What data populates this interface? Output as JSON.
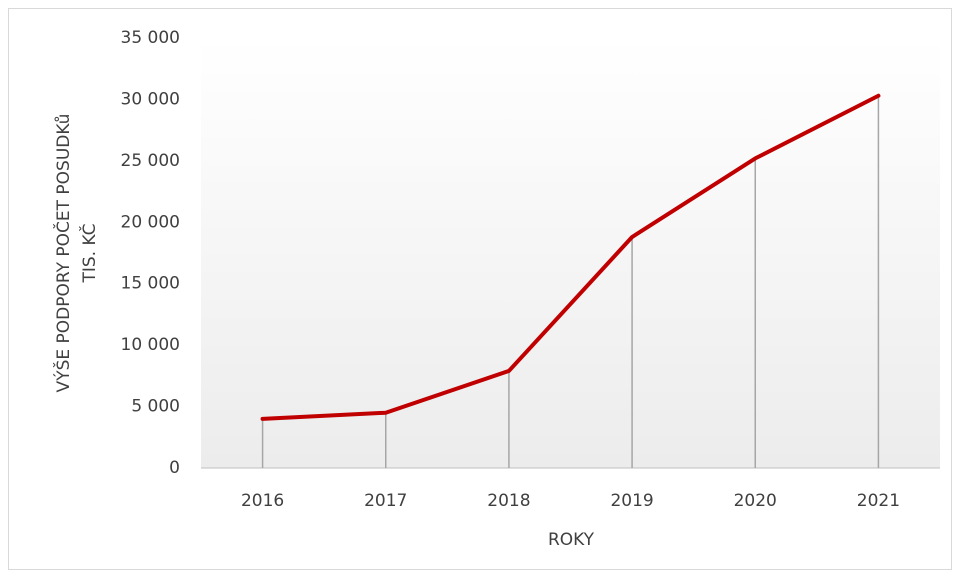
{
  "chart_data": {
    "type": "line",
    "categories": [
      "2016",
      "2017",
      "2018",
      "2019",
      "2020",
      "2021"
    ],
    "values": [
      4000,
      4500,
      7900,
      18800,
      25200,
      30300
    ],
    "color": "#c00000",
    "drop_lines": true,
    "x_label": "ROKY",
    "y_label": [
      "VÝŠE PODPORY POČET POSUDKů",
      "TIS. KČ"
    ],
    "ylim": [
      0,
      35000
    ],
    "yticks": [
      {
        "value": 0,
        "label": "0"
      },
      {
        "value": 5000,
        "label": "5 000"
      },
      {
        "value": 10000,
        "label": "10 000"
      },
      {
        "value": 15000,
        "label": "15 000"
      },
      {
        "value": 20000,
        "label": "20 000"
      },
      {
        "value": 25000,
        "label": "25 000"
      },
      {
        "value": 30000,
        "label": "30 000"
      },
      {
        "value": 35000,
        "label": "35 000"
      }
    ],
    "grid": false
  }
}
